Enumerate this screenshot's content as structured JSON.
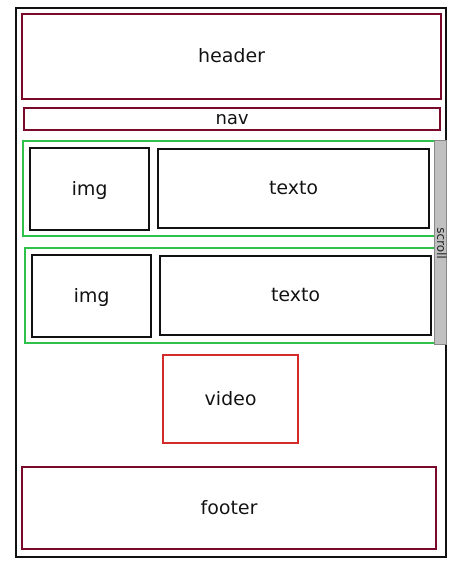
{
  "frame": {},
  "header": {
    "label": "header"
  },
  "nav": {
    "label": "nav"
  },
  "rows": [
    {
      "img_label": "img",
      "text_label": "texto"
    },
    {
      "img_label": "img",
      "text_label": "texto"
    }
  ],
  "scroll": {
    "label": "scroll"
  },
  "video": {
    "label": "video"
  },
  "footer": {
    "label": "footer"
  },
  "colors": {
    "outline": "#111111",
    "header_footer_nav": "#7a0a2a",
    "rows": "#2ec24a",
    "video": "#d42a2a",
    "scrollbar": "#c0c0c0"
  }
}
